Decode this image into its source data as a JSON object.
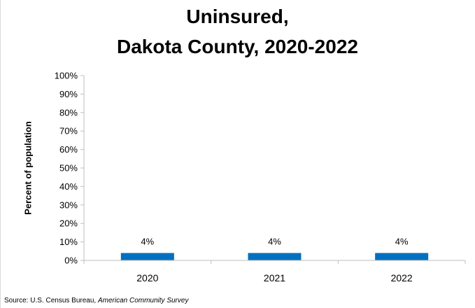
{
  "chart_data": {
    "type": "bar",
    "title_lines": [
      "Uninsured,",
      "Dakota County, 2020-2022"
    ],
    "xlabel": "",
    "ylabel": "Percent of population",
    "categories": [
      "2020",
      "2021",
      "2022"
    ],
    "values": [
      4,
      4,
      4
    ],
    "data_labels": [
      "4%",
      "4%",
      "4%"
    ],
    "ylim": [
      0,
      100
    ],
    "yticks": [
      0,
      10,
      20,
      30,
      40,
      50,
      60,
      70,
      80,
      90,
      100
    ],
    "ytick_labels": [
      "0%",
      "10%",
      "20%",
      "30%",
      "40%",
      "50%",
      "60%",
      "70%",
      "80%",
      "90%",
      "100%"
    ],
    "grid": false,
    "legend": "none",
    "bar_color": "#0070C0",
    "axis_color": "#bfbfbf"
  },
  "source": {
    "prefix": "Source: U.S. Census Bureau, ",
    "survey": "American Community Survey"
  }
}
